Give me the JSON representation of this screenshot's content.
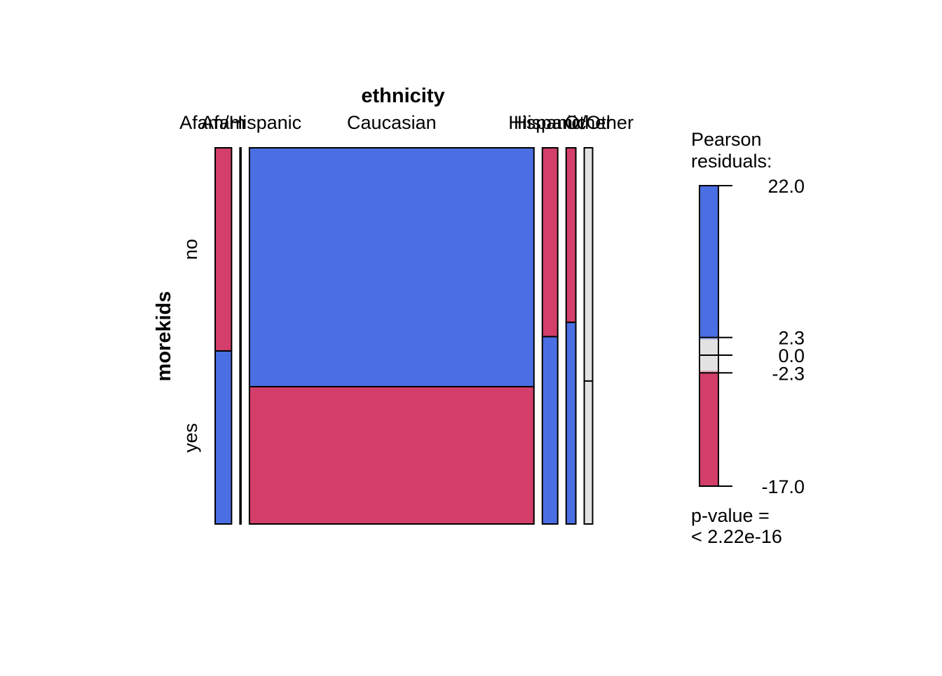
{
  "chart_data": {
    "type": "mosaic",
    "x_variable": "ethnicity",
    "y_variable": "morekids",
    "x_labels": [
      "Afam",
      "Afam/Hispanic",
      "Caucasian",
      "Hispanic",
      "Hispanic/Other",
      "Other"
    ],
    "y_labels": [
      "no",
      "yes"
    ],
    "cells": [
      {
        "ethnicity": "Afam",
        "no_share": 0.54,
        "no_color": "#d33f6a",
        "yes_color": "#4a6fe3",
        "width_share": 0.049
      },
      {
        "ethnicity": "Afam/Hispanic",
        "no_share": 0.5,
        "no_color": "#ffffff",
        "yes_color": "#ffffff",
        "width_share": 0.0
      },
      {
        "ethnicity": "Caucasian",
        "no_share": 0.635,
        "no_color": "#4a6fe3",
        "yes_color": "#d33f6a",
        "width_share": 0.851
      },
      {
        "ethnicity": "Hispanic",
        "no_share": 0.502,
        "no_color": "#d33f6a",
        "yes_color": "#4a6fe3",
        "width_share": 0.046
      },
      {
        "ethnicity": "Hispanic/Other",
        "no_share": 0.464,
        "no_color": "#d33f6a",
        "yes_color": "#4a6fe3",
        "width_share": 0.029
      },
      {
        "ethnicity": "Other",
        "no_share": 0.62,
        "no_color": "#e2e2e2",
        "yes_color": "#e2e2e2",
        "width_share": 0.025
      }
    ],
    "legend": {
      "title_line1": "Pearson",
      "title_line2": "residuals:",
      "ticks": [
        "22.0",
        "2.3",
        "0.0",
        "-2.3",
        "-17.0"
      ],
      "tick_values": [
        22.0,
        2.3,
        0.0,
        -2.3,
        -17.0
      ],
      "range": [
        -17.0,
        22.0
      ],
      "colors": {
        "strong_positive": "#4a6fe3",
        "weak_positive": "#b3bff0",
        "neutral": "#e2e2e2",
        "weak_negative": "#e8a8ba",
        "strong_negative": "#d33f6a"
      },
      "pvalue_line1": "p-value =",
      "pvalue_line2": "< 2.22e-16"
    }
  }
}
